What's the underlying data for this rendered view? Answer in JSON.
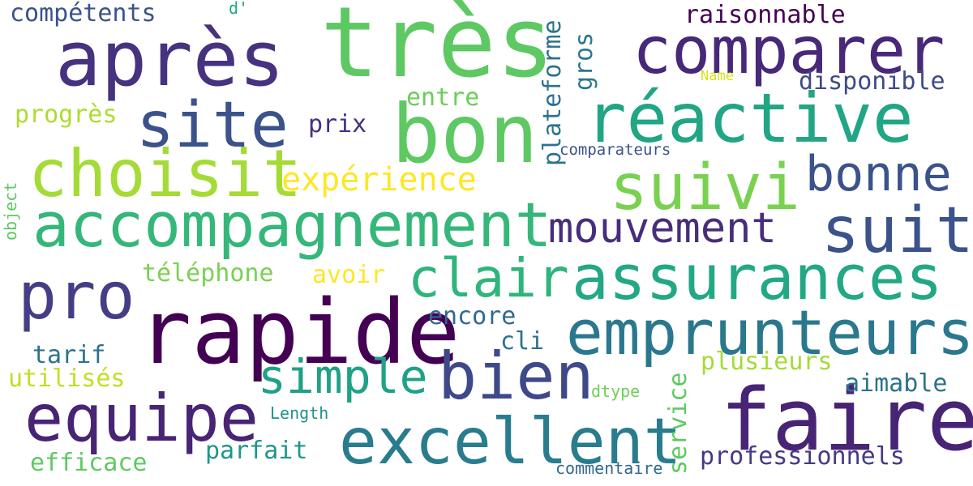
{
  "words": [
    {
      "text": "très",
      "color": "#5ec962"
    },
    {
      "text": "après",
      "color": "#46327e"
    },
    {
      "text": "comparer",
      "color": "#482878"
    },
    {
      "text": "bon",
      "color": "#5ec962"
    },
    {
      "text": "site",
      "color": "#3b528b"
    },
    {
      "text": "réactive",
      "color": "#21a585"
    },
    {
      "text": "choisit",
      "color": "#a5db36"
    },
    {
      "text": "suivi",
      "color": "#7ad151"
    },
    {
      "text": "bonne",
      "color": "#3b528b"
    },
    {
      "text": "accompagnement",
      "color": "#35b779"
    },
    {
      "text": "mouvement",
      "color": "#472d7b"
    },
    {
      "text": "suit",
      "color": "#3b528b"
    },
    {
      "text": "pro",
      "color": "#433e85"
    },
    {
      "text": "clair",
      "color": "#2fb47c"
    },
    {
      "text": "assurances",
      "color": "#22a884"
    },
    {
      "text": "rapide",
      "color": "#440154"
    },
    {
      "text": "emprunteurs",
      "color": "#2a788e"
    },
    {
      "text": "simple",
      "color": "#1fa187"
    },
    {
      "text": "bien",
      "color": "#3e4989"
    },
    {
      "text": "faire",
      "color": "#482475"
    },
    {
      "text": "equipe",
      "color": "#482475"
    },
    {
      "text": "excellent",
      "color": "#287c8e"
    },
    {
      "text": "compétents",
      "color": "#3b528b"
    },
    {
      "text": "raisonnable",
      "color": "#440154"
    },
    {
      "text": "disponible",
      "color": "#3e4a89"
    },
    {
      "text": "progrès",
      "color": "#addc30"
    },
    {
      "text": "entre",
      "color": "#6ccd5a"
    },
    {
      "text": "prix",
      "color": "#46307e"
    },
    {
      "text": "expérience",
      "color": "#fde725"
    },
    {
      "text": "comparateurs",
      "color": "#3b528b"
    },
    {
      "text": "téléphone",
      "color": "#7ad151"
    },
    {
      "text": "avoir",
      "color": "#fde725"
    },
    {
      "text": "encore",
      "color": "#31688e"
    },
    {
      "text": "tarif",
      "color": "#2c728e"
    },
    {
      "text": "cli",
      "color": "#2c728e"
    },
    {
      "text": "utilisés",
      "color": "#c2df23"
    },
    {
      "text": "plusieurs",
      "color": "#a5db36"
    },
    {
      "text": "aimable",
      "color": "#2c728e"
    },
    {
      "text": "dtype",
      "color": "#6ece58"
    },
    {
      "text": "Length",
      "color": "#21918c"
    },
    {
      "text": "parfait",
      "color": "#1f968b"
    },
    {
      "text": "efficace",
      "color": "#5ec962"
    },
    {
      "text": "professionnels",
      "color": "#443a83"
    },
    {
      "text": "commentaire",
      "color": "#31688e"
    },
    {
      "text": "Name",
      "color": "#d8e219"
    },
    {
      "text": "d'",
      "color": "#20a386"
    },
    {
      "text": "plateforme",
      "color": "#2c728e"
    },
    {
      "text": "gros",
      "color": "#2a788e"
    },
    {
      "text": "object",
      "color": "#5ec962"
    },
    {
      "text": "service",
      "color": "#5ec962"
    }
  ]
}
